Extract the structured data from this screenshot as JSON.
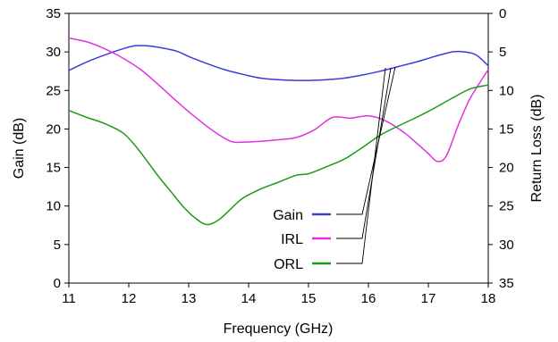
{
  "chart_data": {
    "type": "line",
    "xlabel": "Frequency (GHz)",
    "ylabel_left": "Gain (dB)",
    "ylabel_right": "Return Loss (dB)",
    "xlim": [
      11,
      18
    ],
    "ylim_left": [
      0,
      35
    ],
    "ylim_right": [
      35,
      0
    ],
    "x_ticks": [
      "11",
      "12",
      "13",
      "14",
      "15",
      "16",
      "17",
      "18"
    ],
    "y_ticks_left": [
      "0",
      "5",
      "10",
      "15",
      "20",
      "25",
      "30",
      "35"
    ],
    "y_ticks_right": [
      "35",
      "30",
      "25",
      "20",
      "15",
      "10",
      "5",
      "0"
    ],
    "grid": false,
    "legend_position": "bottom-center",
    "series": [
      {
        "name": "Gain",
        "axis": "left",
        "color": "#3b3bdc",
        "x": [
          11,
          11.3,
          11.6,
          11.9,
          12.1,
          12.3,
          12.5,
          12.8,
          13.0,
          13.3,
          13.6,
          13.9,
          14.2,
          14.5,
          14.8,
          15.0,
          15.3,
          15.6,
          15.9,
          16.2,
          16.5,
          16.8,
          17.1,
          17.4,
          17.6,
          17.8,
          18
        ],
        "y": [
          27.6,
          28.7,
          29.6,
          30.4,
          30.8,
          30.8,
          30.6,
          30.1,
          29.4,
          28.5,
          27.7,
          27.1,
          26.6,
          26.4,
          26.3,
          26.3,
          26.4,
          26.6,
          27.0,
          27.5,
          28.1,
          28.7,
          29.4,
          30.0,
          30.0,
          29.6,
          28.2
        ]
      },
      {
        "name": "IRL",
        "axis": "right",
        "color": "#e032e0",
        "x": [
          11,
          11.3,
          11.6,
          11.9,
          12.2,
          12.5,
          12.8,
          13.1,
          13.4,
          13.7,
          13.9,
          14.2,
          14.5,
          14.8,
          15.1,
          15.4,
          15.7,
          16.0,
          16.3,
          16.6,
          16.8,
          17.0,
          17.15,
          17.3,
          17.5,
          17.7,
          18
        ],
        "y": [
          3.2,
          3.7,
          4.6,
          5.8,
          7.3,
          9.3,
          11.4,
          13.4,
          15.2,
          16.6,
          16.7,
          16.6,
          16.4,
          16.1,
          15.1,
          13.5,
          13.6,
          13.3,
          14.0,
          15.5,
          16.8,
          18.2,
          19.2,
          18.5,
          14.5,
          11.0,
          7.3
        ]
      },
      {
        "name": "ORL",
        "axis": "right",
        "color": "#1a9a1a",
        "x": [
          11,
          11.3,
          11.6,
          11.9,
          12.1,
          12.3,
          12.5,
          12.7,
          12.9,
          13.1,
          13.3,
          13.5,
          13.7,
          13.9,
          14.2,
          14.5,
          14.8,
          15.0,
          15.3,
          15.6,
          15.9,
          16.2,
          16.5,
          16.8,
          17.1,
          17.4,
          17.7,
          18
        ],
        "y": [
          12.6,
          13.5,
          14.3,
          15.5,
          17.1,
          19.1,
          21.2,
          23.1,
          25.0,
          26.5,
          27.4,
          26.8,
          25.4,
          24.0,
          22.8,
          21.9,
          21.0,
          20.8,
          19.9,
          18.9,
          17.4,
          15.8,
          14.6,
          13.5,
          12.3,
          11.0,
          9.8,
          9.3
        ]
      }
    ]
  }
}
